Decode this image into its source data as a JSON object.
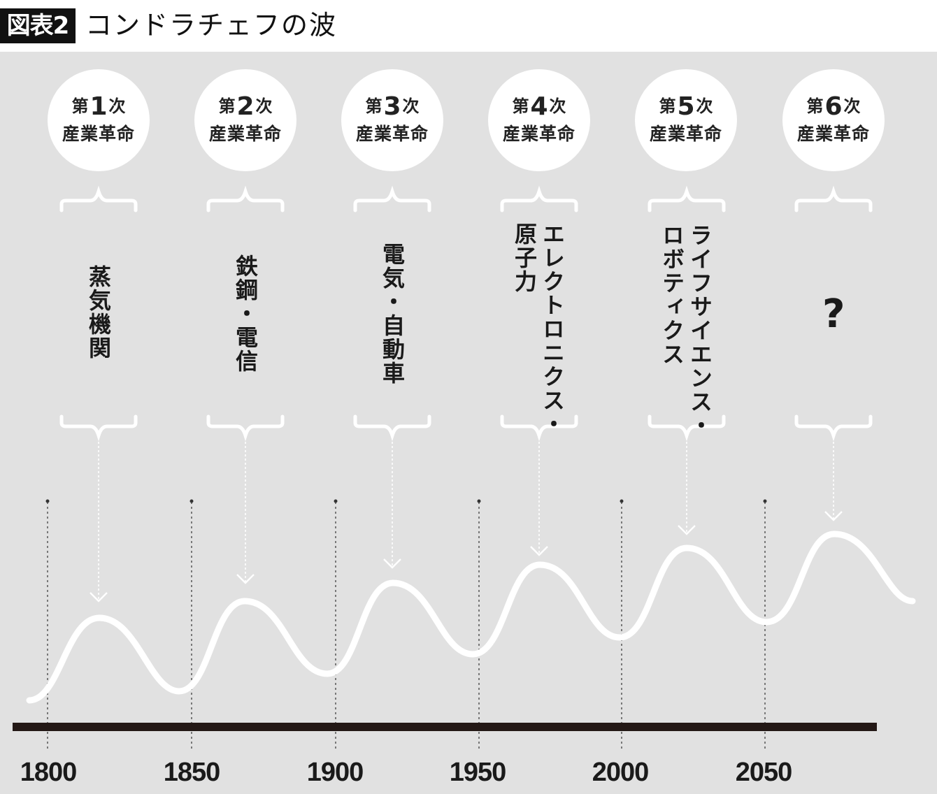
{
  "figure": {
    "badge": "図表2",
    "title": "コンドラチェフの波"
  },
  "revolutions": [
    {
      "prefix": "第",
      "number": "1",
      "suffix": "次",
      "label": "産業革命",
      "technology": "蒸気機関"
    },
    {
      "prefix": "第",
      "number": "2",
      "suffix": "次",
      "label": "産業革命",
      "technology": "鉄鋼・電信"
    },
    {
      "prefix": "第",
      "number": "3",
      "suffix": "次",
      "label": "産業革命",
      "technology": "電気・自動車"
    },
    {
      "prefix": "第",
      "number": "4",
      "suffix": "次",
      "label": "産業革命",
      "technology": "エレクトロニクス・\n原子力"
    },
    {
      "prefix": "第",
      "number": "5",
      "suffix": "次",
      "label": "産業革命",
      "technology": "ライフサイエンス・\nロボティクス"
    },
    {
      "prefix": "第",
      "number": "6",
      "suffix": "次",
      "label": "産業革命",
      "technology": "?"
    }
  ],
  "axis": {
    "years": [
      "1800",
      "1850",
      "1900",
      "1950",
      "2000",
      "2050"
    ]
  },
  "colors": {
    "background": "#e1e1e1",
    "wave": "#ffffff",
    "axis_line": "#231815",
    "text": "#1a1a1a"
  }
}
